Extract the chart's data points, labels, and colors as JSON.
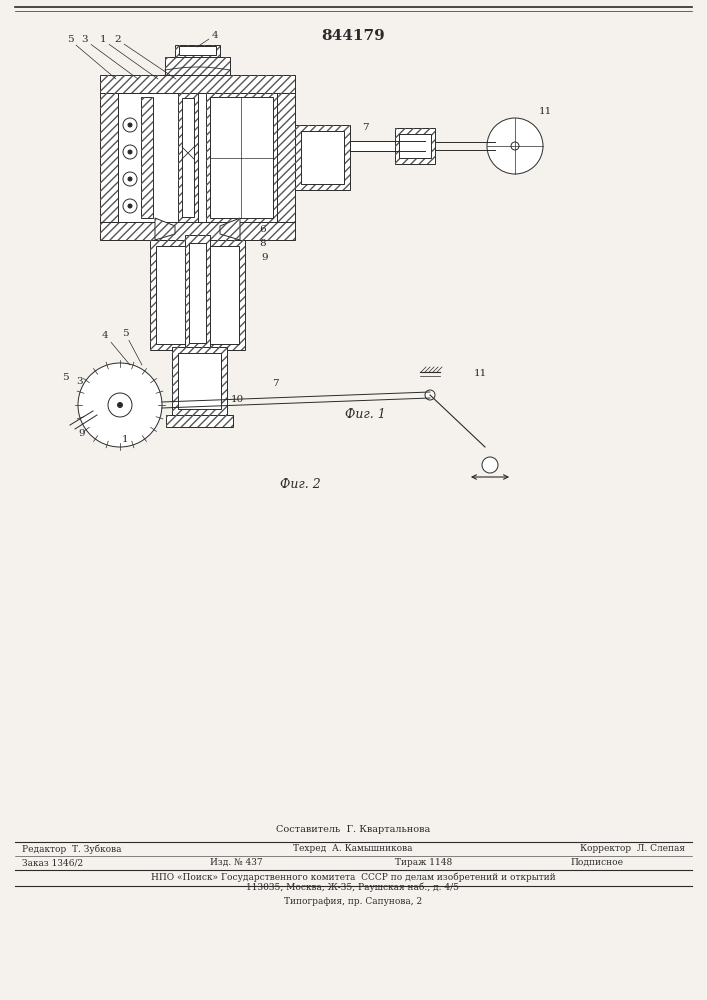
{
  "title": "844179",
  "fig1_caption": "Фиг. 1",
  "fig2_caption": "Фиг. 2",
  "footer_composer": "Составитель  Г. Квартальнова",
  "footer_editor": "Редактор  Т. Зубкова",
  "footer_techred": "Техред  А. Камышникова",
  "footer_corrector": "Корректор  Л. Слепая",
  "footer_order": "Заказ 1346/2",
  "footer_izd": "Изд. № 437",
  "footer_tirazh": "Тираж 1148",
  "footer_podp": "Подписное",
  "footer_npo": "НПО «Поиск» Государственного комитета  СССР по делам изобретений и открытий",
  "footer_addr": "113035, Москва, Ж-35, Раушская наб., д. 4/5",
  "footer_typo": "Типография, пр. Сапунова, 2",
  "bg_color": "#f5f2ed",
  "line_color": "#2a2a2a",
  "hatch_color": "#555555",
  "label_fs": 7.5,
  "caption_fs": 9
}
